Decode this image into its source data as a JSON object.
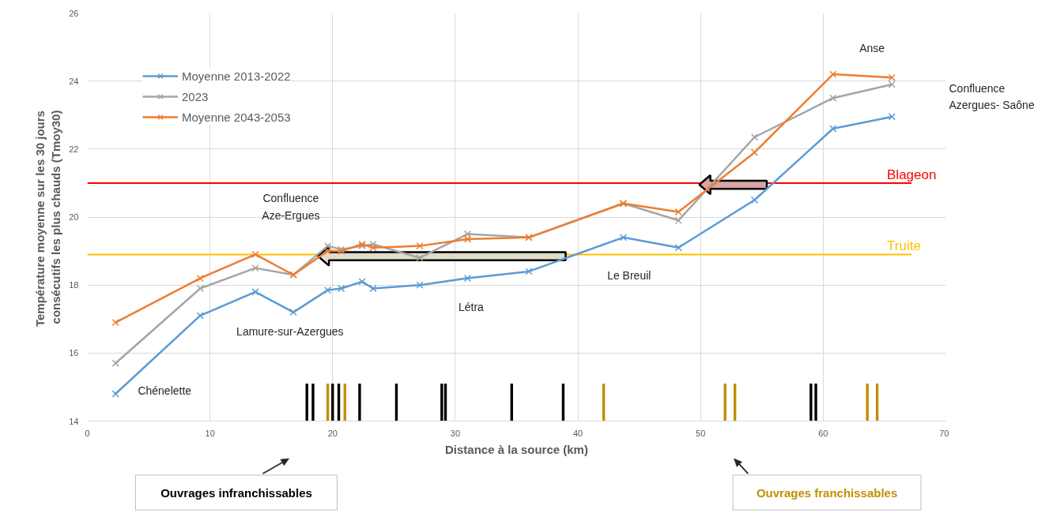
{
  "chart_data": {
    "type": "line",
    "xlabel": "Distance à la source (km)",
    "ylabel": "Température  moyenne sur les 30 jours consécutifs les plus chauds (Tmoy30)",
    "xlim": [
      0,
      70
    ],
    "xticks": [
      0,
      10,
      20,
      30,
      40,
      50,
      60,
      70
    ],
    "ylim": [
      14,
      26
    ],
    "yticks": [
      14,
      16,
      18,
      20,
      22,
      24,
      26
    ],
    "grid": true,
    "legend": "top left",
    "marker": "cross",
    "line_style": "solid",
    "x": [
      2.3,
      9.2,
      13.7,
      16.8,
      19.6,
      20.7,
      22.4,
      23.3,
      27.1,
      31.0,
      36.0,
      43.7,
      48.2,
      54.4,
      60.8,
      65.6
    ],
    "series": [
      {
        "name": "Moyenne 2013-2022",
        "color": "#5b9bd5",
        "values": [
          14.8,
          17.1,
          17.8,
          17.2,
          17.85,
          17.9,
          18.1,
          17.9,
          18.0,
          18.2,
          18.4,
          19.4,
          19.1,
          20.5,
          22.6,
          22.95
        ]
      },
      {
        "name": "2023",
        "color": "#a5a5a5",
        "values": [
          15.7,
          17.9,
          18.5,
          18.3,
          19.15,
          19.05,
          19.15,
          19.2,
          18.8,
          19.5,
          19.4,
          20.4,
          19.9,
          22.35,
          23.5,
          23.9
        ]
      },
      {
        "name": "Moyenne 2043-2053",
        "color": "#ed7d31",
        "values": [
          16.9,
          18.2,
          18.9,
          18.3,
          19.0,
          19.0,
          19.2,
          19.1,
          19.15,
          19.35,
          19.4,
          20.4,
          20.15,
          21.9,
          24.2,
          24.1
        ]
      },
      {
        "type": "bar",
        "name": "Ouvrages infranchissables",
        "color": "#000000",
        "x": [
          17.9,
          18.4,
          20.0,
          20.5,
          22.2,
          25.2,
          28.9,
          29.2,
          34.6,
          38.8,
          59.0,
          59.4
        ],
        "values": [
          1.1,
          1.1,
          1.1,
          1.1,
          1.1,
          1.1,
          1.1,
          1.1,
          1.1,
          1.1,
          1.1,
          1.1
        ],
        "base": [
          14,
          14,
          14,
          14,
          14,
          14,
          14,
          14,
          14,
          14,
          14,
          14
        ]
      },
      {
        "type": "bar",
        "name": "Ouvrages franchissables",
        "color": "#bf9000",
        "x": [
          19.6,
          21.0,
          42.1,
          52.0,
          52.8,
          63.6,
          64.4
        ],
        "values": [
          1.1,
          1.1,
          1.1,
          1.1,
          1.1,
          1.1,
          1.1
        ],
        "base": [
          14,
          14,
          14,
          14,
          14,
          14,
          14
        ]
      }
    ],
    "ref_lines": [
      {
        "axis": "y",
        "value": 21.0,
        "label": "Blageon",
        "color": "#ff0000"
      },
      {
        "axis": "y",
        "value": 18.9,
        "label": "Truite",
        "color": "#ffc000"
      }
    ],
    "annotations": [
      "Chénelette",
      "Lamure-sur-Azergues",
      "Confluence Aze-Ergues",
      "Létra",
      "Le Breuil",
      "Anse",
      "Confluence Azergues- Saône"
    ]
  }
}
